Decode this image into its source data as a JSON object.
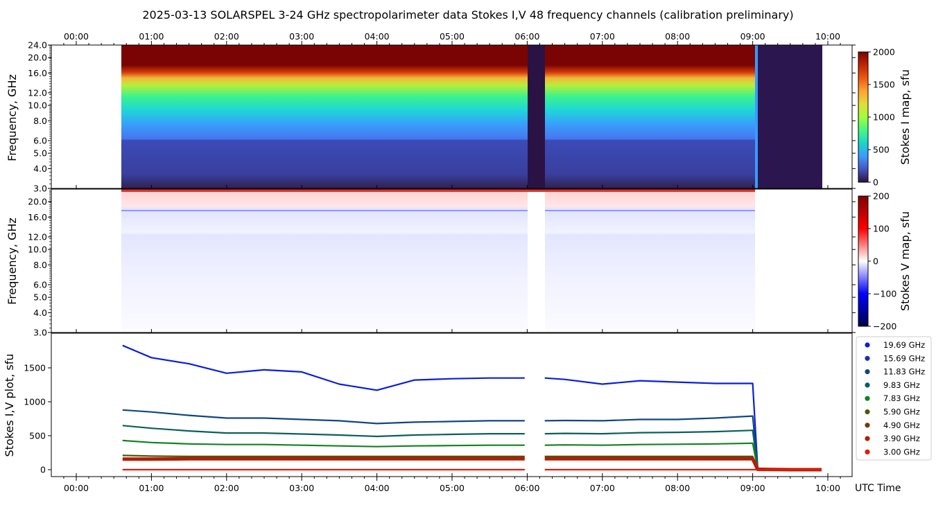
{
  "title": "2025-03-13  SOLARSPEL  3-24 GHz spectropolarimeter data   Stokes I,V   48 frequency channels   (calibration preliminary)",
  "time_ticks": [
    "00:00",
    "01:00",
    "02:00",
    "03:00",
    "04:00",
    "05:00",
    "06:00",
    "07:00",
    "08:00",
    "09:00",
    "10:00"
  ],
  "x_axis_label": "UTC Time",
  "panel_i": {
    "ylabel": "Frequency, GHz",
    "freq_ticks": [
      "24.0",
      "20.0",
      "16.0",
      "12.0",
      "10.0",
      "8.0",
      "6.0",
      "5.0",
      "4.0",
      "3.0"
    ],
    "colorbar_label": "Stokes I map, sfu",
    "colorbar_ticks": [
      "2000",
      "1500",
      "1000",
      "500",
      "0"
    ]
  },
  "panel_v": {
    "ylabel": "Frequency, GHz",
    "freq_ticks": [
      "20.0",
      "16.0",
      "12.0",
      "10.0",
      "8.0",
      "6.0",
      "5.0",
      "4.0",
      "3.0"
    ],
    "colorbar_label": "Stokes V map, sfu",
    "colorbar_ticks": [
      "200",
      "100",
      "0",
      "−100",
      "−200"
    ]
  },
  "panel_plot": {
    "ylabel": "Stokes I,V plot, sfu",
    "y_ticks": [
      "1500",
      "1000",
      "500",
      "0"
    ]
  },
  "legend": [
    {
      "label": "19.69 GHz",
      "color": "#0a1de0"
    },
    {
      "label": "15.69 GHz",
      "color": "#1430b4"
    },
    {
      "label": "11.83 GHz",
      "color": "#0f4682"
    },
    {
      "label": "9.83 GHz",
      "color": "#0a5f5a"
    },
    {
      "label": "7.83 GHz",
      "color": "#10821e"
    },
    {
      "label": "5.90 GHz",
      "color": "#465a0a"
    },
    {
      "label": "4.90 GHz",
      "color": "#6e3c05"
    },
    {
      "label": "3.90 GHz",
      "color": "#b41e05"
    },
    {
      "label": "3.00 GHz",
      "color": "#e6190a"
    }
  ],
  "chart_data": [
    {
      "type": "heatmap",
      "title": "Stokes I map",
      "xlabel": "UTC Time",
      "ylabel": "Frequency, GHz",
      "x_range": [
        "00:00",
        "10:00"
      ],
      "y_range_ghz": [
        3.0,
        24.0
      ],
      "y_scale": "log",
      "colorbar": {
        "label": "Stokes I map, sfu",
        "range": [
          0,
          2000
        ]
      },
      "data_span": [
        "00:37",
        "09:55"
      ],
      "gap": [
        "06:00",
        "06:14"
      ],
      "notes_visible": "high values above ~16 GHz, level decreasing to ~250 sfu below 6 GHz; drop to ~0 after 09:02"
    },
    {
      "type": "heatmap",
      "title": "Stokes V map",
      "xlabel": "UTC Time",
      "ylabel": "Frequency, GHz",
      "x_range": [
        "00:00",
        "10:00"
      ],
      "y_range_ghz": [
        3.0,
        24.0
      ],
      "y_scale": "log",
      "colorbar": {
        "label": "Stokes V map, sfu",
        "range": [
          -200,
          200
        ]
      }
    },
    {
      "type": "line",
      "ylabel": "Stokes I,V plot, sfu",
      "xlabel": "UTC Time",
      "x_range": [
        "00:00",
        "10:00"
      ],
      "ylim": [
        -90,
        1950
      ],
      "x": [
        "00:37",
        "01:00",
        "01:30",
        "02:00",
        "02:30",
        "03:00",
        "03:30",
        "04:00",
        "04:30",
        "05:00",
        "05:30",
        "05:58",
        "06:14",
        "06:30",
        "07:00",
        "07:30",
        "08:00",
        "08:30",
        "09:00",
        "09:04",
        "09:30",
        "09:55"
      ],
      "series": [
        {
          "name": "19.69 GHz",
          "values": [
            1830,
            1650,
            1560,
            1420,
            1470,
            1440,
            1260,
            1170,
            1320,
            1340,
            1350,
            1350,
            1350,
            1330,
            1260,
            1310,
            1290,
            1270,
            1270,
            20,
            0,
            0
          ]
        },
        {
          "name": "11.83 GHz",
          "values": [
            880,
            850,
            800,
            760,
            760,
            740,
            720,
            680,
            700,
            710,
            720,
            720,
            720,
            725,
            720,
            740,
            740,
            760,
            790,
            20,
            0,
            0
          ]
        },
        {
          "name": "9.83 GHz",
          "values": [
            650,
            610,
            570,
            540,
            540,
            525,
            510,
            490,
            510,
            520,
            530,
            530,
            530,
            535,
            530,
            545,
            550,
            560,
            580,
            15,
            0,
            0
          ]
        },
        {
          "name": "7.83 GHz",
          "values": [
            430,
            400,
            380,
            370,
            370,
            360,
            350,
            340,
            350,
            355,
            360,
            360,
            360,
            365,
            360,
            370,
            375,
            380,
            390,
            10,
            0,
            0
          ]
        },
        {
          "name": "5.90 GHz",
          "values": [
            210,
            200,
            195,
            195,
            195,
            195,
            195,
            195,
            195,
            195,
            195,
            195,
            195,
            195,
            195,
            195,
            195,
            195,
            195,
            5,
            0,
            0
          ]
        },
        {
          "name": "3.90 GHz",
          "values": [
            155,
            155,
            160,
            160,
            160,
            160,
            160,
            160,
            160,
            160,
            160,
            160,
            160,
            160,
            160,
            160,
            160,
            160,
            160,
            5,
            0,
            0
          ]
        },
        {
          "name": "3.00 GHz",
          "values": [
            0,
            0,
            0,
            0,
            0,
            0,
            0,
            0,
            0,
            0,
            0,
            0,
            0,
            0,
            0,
            0,
            0,
            0,
            0,
            0,
            0,
            0
          ]
        }
      ]
    }
  ]
}
